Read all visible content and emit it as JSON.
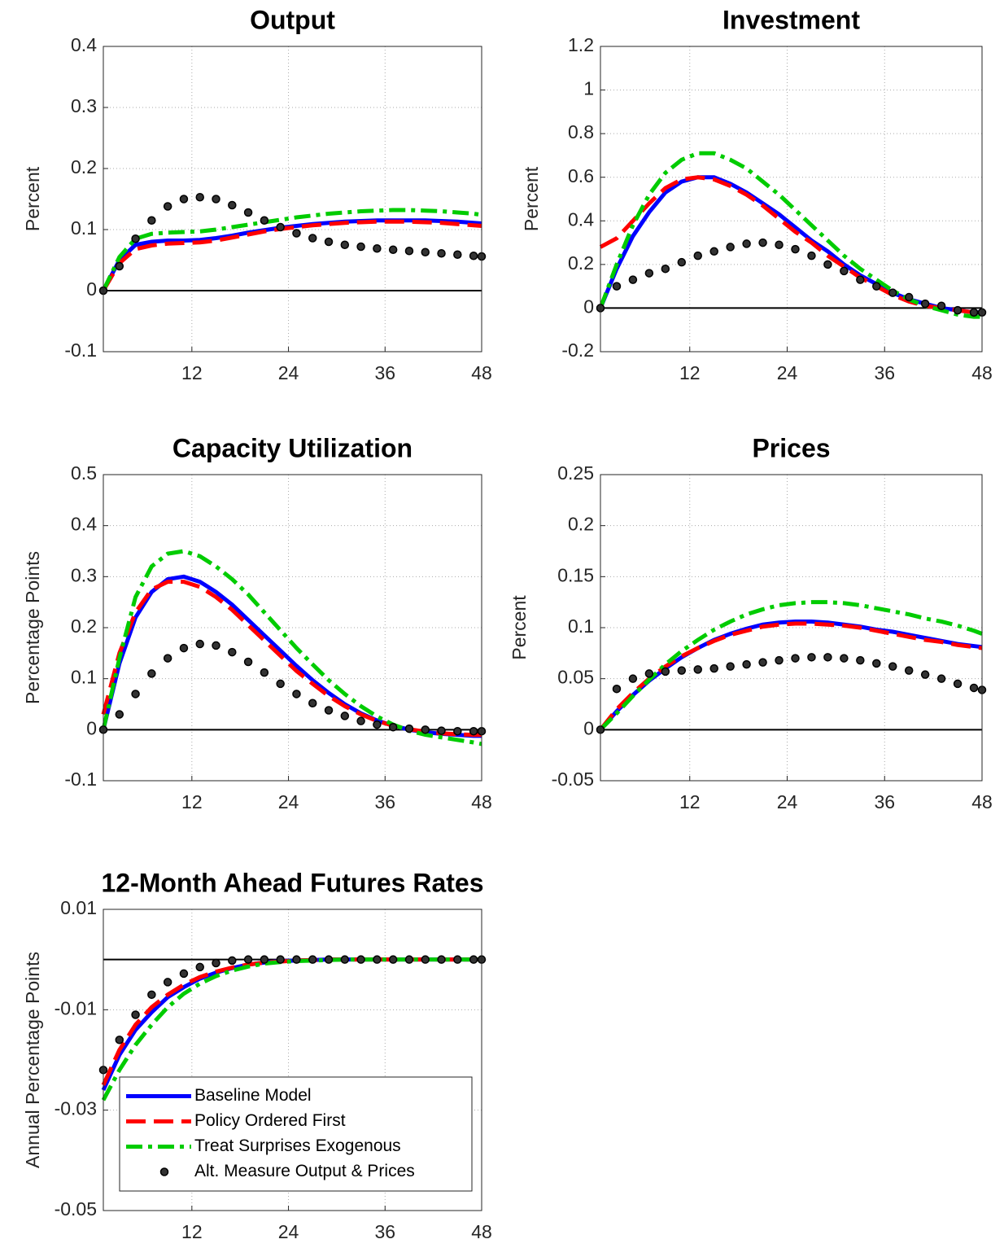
{
  "chart_data": [
    {
      "type": "line",
      "title": "Output",
      "y_label": "Percent",
      "x": [
        1,
        3,
        5,
        7,
        9,
        11,
        13,
        15,
        17,
        19,
        21,
        23,
        25,
        27,
        29,
        31,
        33,
        35,
        37,
        39,
        41,
        43,
        45,
        47,
        48
      ],
      "xlim": [
        1,
        48
      ],
      "xticks": [
        12,
        24,
        36,
        48
      ],
      "ylim": [
        -0.1,
        0.4
      ],
      "yticks": [
        -0.1,
        0,
        0.1,
        0.2,
        0.3,
        0.4
      ],
      "grid": true,
      "hline": 0,
      "series": [
        {
          "color": "#0000ff",
          "style": "solid",
          "values": [
            0,
            0.05,
            0.075,
            0.08,
            0.082,
            0.082,
            0.083,
            0.086,
            0.09,
            0.095,
            0.099,
            0.103,
            0.106,
            0.109,
            0.111,
            0.113,
            0.114,
            0.115,
            0.115,
            0.115,
            0.115,
            0.114,
            0.113,
            0.111,
            0.11
          ]
        },
        {
          "color": "#ff0000",
          "style": "dashed",
          "values": [
            0,
            0.045,
            0.068,
            0.074,
            0.077,
            0.078,
            0.079,
            0.082,
            0.087,
            0.092,
            0.097,
            0.101,
            0.104,
            0.107,
            0.109,
            0.111,
            0.112,
            0.113,
            0.113,
            0.113,
            0.112,
            0.111,
            0.109,
            0.107,
            0.106
          ]
        },
        {
          "color": "#00cc00",
          "style": "dashdot",
          "values": [
            0,
            0.055,
            0.085,
            0.093,
            0.095,
            0.096,
            0.097,
            0.1,
            0.104,
            0.108,
            0.112,
            0.116,
            0.12,
            0.123,
            0.126,
            0.128,
            0.13,
            0.131,
            0.132,
            0.132,
            0.131,
            0.13,
            0.128,
            0.126,
            0.124
          ]
        },
        {
          "color": "#000000",
          "style": "markers",
          "values": [
            0,
            0.04,
            0.085,
            0.115,
            0.138,
            0.15,
            0.153,
            0.15,
            0.14,
            0.128,
            0.115,
            0.104,
            0.094,
            0.086,
            0.08,
            0.075,
            0.072,
            0.069,
            0.067,
            0.065,
            0.063,
            0.061,
            0.059,
            0.057,
            0.056
          ]
        }
      ]
    },
    {
      "type": "line",
      "title": "Investment",
      "y_label": "Percent",
      "x": [
        1,
        3,
        5,
        7,
        9,
        11,
        13,
        15,
        17,
        19,
        21,
        23,
        25,
        27,
        29,
        31,
        33,
        35,
        37,
        39,
        41,
        43,
        45,
        47,
        48
      ],
      "xlim": [
        1,
        48
      ],
      "xticks": [
        12,
        24,
        36,
        48
      ],
      "ylim": [
        -0.2,
        1.2
      ],
      "yticks": [
        -0.2,
        0,
        0.2,
        0.4,
        0.6,
        0.8,
        1,
        1.2
      ],
      "grid": true,
      "hline": 0,
      "series": [
        {
          "color": "#0000ff",
          "style": "solid",
          "values": [
            0,
            0.18,
            0.33,
            0.44,
            0.53,
            0.58,
            0.6,
            0.6,
            0.57,
            0.53,
            0.48,
            0.43,
            0.37,
            0.31,
            0.26,
            0.2,
            0.15,
            0.11,
            0.07,
            0.04,
            0.02,
            0,
            -0.01,
            -0.02,
            -0.02
          ]
        },
        {
          "color": "#ff0000",
          "style": "dashed",
          "values": [
            0.28,
            0.32,
            0.4,
            0.48,
            0.55,
            0.59,
            0.6,
            0.59,
            0.56,
            0.52,
            0.47,
            0.41,
            0.35,
            0.3,
            0.24,
            0.19,
            0.14,
            0.1,
            0.06,
            0.03,
            0.01,
            0,
            -0.01,
            -0.02,
            -0.02
          ]
        },
        {
          "color": "#00cc00",
          "style": "dashdot",
          "values": [
            0,
            0.2,
            0.38,
            0.52,
            0.62,
            0.68,
            0.71,
            0.71,
            0.68,
            0.64,
            0.58,
            0.52,
            0.45,
            0.38,
            0.31,
            0.24,
            0.18,
            0.13,
            0.08,
            0.04,
            0.01,
            -0.01,
            -0.03,
            -0.04,
            -0.04
          ]
        },
        {
          "color": "#000000",
          "style": "markers",
          "values": [
            0,
            0.1,
            0.13,
            0.16,
            0.18,
            0.21,
            0.24,
            0.26,
            0.28,
            0.295,
            0.3,
            0.29,
            0.27,
            0.24,
            0.2,
            0.17,
            0.13,
            0.1,
            0.07,
            0.05,
            0.02,
            0.01,
            -0.01,
            -0.02,
            -0.02
          ]
        }
      ]
    },
    {
      "type": "line",
      "title": "Capacity Utilization",
      "y_label": "Percentage Points",
      "x": [
        1,
        3,
        5,
        7,
        9,
        11,
        13,
        15,
        17,
        19,
        21,
        23,
        25,
        27,
        29,
        31,
        33,
        35,
        37,
        39,
        41,
        43,
        45,
        47,
        48
      ],
      "xlim": [
        1,
        48
      ],
      "xticks": [
        12,
        24,
        36,
        48
      ],
      "ylim": [
        -0.1,
        0.5
      ],
      "yticks": [
        -0.1,
        0,
        0.1,
        0.2,
        0.3,
        0.4,
        0.5
      ],
      "grid": true,
      "hline": 0,
      "series": [
        {
          "color": "#0000ff",
          "style": "solid",
          "values": [
            0,
            0.13,
            0.22,
            0.27,
            0.295,
            0.3,
            0.29,
            0.27,
            0.245,
            0.215,
            0.185,
            0.155,
            0.125,
            0.097,
            0.072,
            0.05,
            0.032,
            0.018,
            0.008,
            0,
            -0.005,
            -0.008,
            -0.01,
            -0.012,
            -0.012
          ]
        },
        {
          "color": "#ff0000",
          "style": "dashed",
          "values": [
            0.03,
            0.15,
            0.23,
            0.275,
            0.29,
            0.29,
            0.28,
            0.26,
            0.235,
            0.205,
            0.175,
            0.145,
            0.115,
            0.09,
            0.066,
            0.046,
            0.03,
            0.017,
            0.008,
            0.001,
            -0.004,
            -0.007,
            -0.009,
            -0.01,
            -0.01
          ]
        },
        {
          "color": "#00cc00",
          "style": "dashdot",
          "values": [
            0,
            0.14,
            0.26,
            0.32,
            0.345,
            0.35,
            0.34,
            0.32,
            0.295,
            0.265,
            0.23,
            0.195,
            0.16,
            0.128,
            0.097,
            0.07,
            0.046,
            0.026,
            0.01,
            -0.002,
            -0.01,
            -0.015,
            -0.02,
            -0.025,
            -0.028
          ]
        },
        {
          "color": "#000000",
          "style": "markers",
          "values": [
            0,
            0.03,
            0.07,
            0.11,
            0.14,
            0.16,
            0.168,
            0.165,
            0.152,
            0.133,
            0.112,
            0.09,
            0.07,
            0.052,
            0.038,
            0.027,
            0.017,
            0.01,
            0.005,
            0.002,
            0,
            -0.002,
            -0.003,
            -0.003,
            -0.003
          ]
        }
      ]
    },
    {
      "type": "line",
      "title": "Prices",
      "y_label": "Percent",
      "x": [
        1,
        3,
        5,
        7,
        9,
        11,
        13,
        15,
        17,
        19,
        21,
        23,
        25,
        27,
        29,
        31,
        33,
        35,
        37,
        39,
        41,
        43,
        45,
        47,
        48
      ],
      "xlim": [
        1,
        48
      ],
      "xticks": [
        12,
        24,
        36,
        48
      ],
      "ylim": [
        -0.05,
        0.25
      ],
      "yticks": [
        -0.05,
        0,
        0.05,
        0.1,
        0.15,
        0.2,
        0.25
      ],
      "grid": true,
      "hline": 0,
      "series": [
        {
          "color": "#0000ff",
          "style": "solid",
          "values": [
            0,
            0.018,
            0.034,
            0.048,
            0.06,
            0.071,
            0.08,
            0.088,
            0.094,
            0.099,
            0.103,
            0.105,
            0.106,
            0.106,
            0.105,
            0.103,
            0.101,
            0.098,
            0.096,
            0.093,
            0.09,
            0.087,
            0.084,
            0.082,
            0.081
          ]
        },
        {
          "color": "#ff0000",
          "style": "dashed",
          "values": [
            0,
            0.02,
            0.036,
            0.05,
            0.062,
            0.072,
            0.08,
            0.087,
            0.093,
            0.097,
            0.101,
            0.103,
            0.104,
            0.104,
            0.103,
            0.102,
            0.1,
            0.097,
            0.094,
            0.091,
            0.088,
            0.086,
            0.083,
            0.081,
            0.08
          ]
        },
        {
          "color": "#00cc00",
          "style": "dashdot",
          "values": [
            0,
            0.016,
            0.033,
            0.049,
            0.064,
            0.077,
            0.088,
            0.098,
            0.106,
            0.113,
            0.118,
            0.122,
            0.124,
            0.125,
            0.125,
            0.124,
            0.122,
            0.119,
            0.116,
            0.113,
            0.109,
            0.106,
            0.102,
            0.097,
            0.094
          ]
        },
        {
          "color": "#000000",
          "style": "markers",
          "values": [
            0,
            0.04,
            0.05,
            0.055,
            0.057,
            0.058,
            0.059,
            0.06,
            0.062,
            0.064,
            0.066,
            0.068,
            0.07,
            0.071,
            0.071,
            0.07,
            0.068,
            0.065,
            0.062,
            0.058,
            0.054,
            0.05,
            0.045,
            0.041,
            0.039
          ]
        }
      ]
    },
    {
      "type": "line",
      "title": "12-Month Ahead Futures Rates",
      "y_label": "Annual Percentage Points",
      "x": [
        1,
        3,
        5,
        7,
        9,
        11,
        13,
        15,
        17,
        19,
        21,
        23,
        25,
        27,
        29,
        31,
        33,
        35,
        37,
        39,
        41,
        43,
        45,
        47,
        48
      ],
      "xlim": [
        1,
        48
      ],
      "xticks": [
        12,
        24,
        36,
        48
      ],
      "ylim": [
        -0.05,
        0.01
      ],
      "yticks": [
        -0.05,
        -0.03,
        -0.01,
        0.01
      ],
      "grid": true,
      "hline": 0,
      "legend": "lower left",
      "series": [
        {
          "name": "Baseline Model",
          "color": "#0000ff",
          "style": "solid",
          "values": [
            -0.026,
            -0.019,
            -0.014,
            -0.0105,
            -0.0075,
            -0.0055,
            -0.0038,
            -0.0026,
            -0.0017,
            -0.001,
            -0.0006,
            -0.0003,
            -0.0002,
            -0.0001,
            0,
            0,
            0,
            0,
            0,
            0,
            0,
            0,
            0,
            0,
            0
          ]
        },
        {
          "name": "Policy Ordered First",
          "color": "#ff0000",
          "style": "dashed",
          "values": [
            -0.025,
            -0.018,
            -0.013,
            -0.0095,
            -0.007,
            -0.005,
            -0.0035,
            -0.0024,
            -0.0016,
            -0.001,
            -0.0006,
            -0.0004,
            -0.0002,
            -0.0001,
            0,
            0,
            0,
            0,
            0,
            0,
            0,
            0,
            0,
            0,
            0
          ]
        },
        {
          "name": "Treat Surprises Exogenous",
          "color": "#00cc00",
          "style": "dashdot",
          "values": [
            -0.028,
            -0.022,
            -0.017,
            -0.013,
            -0.0095,
            -0.0068,
            -0.0048,
            -0.0033,
            -0.0022,
            -0.0014,
            -0.0008,
            -0.0005,
            -0.0003,
            -0.0002,
            -0.0001,
            0,
            0,
            0,
            0,
            0,
            0,
            0,
            0,
            0,
            0
          ]
        },
        {
          "name": "Alt. Measure Output & Prices",
          "color": "#000000",
          "style": "markers",
          "values": [
            -0.022,
            -0.016,
            -0.011,
            -0.007,
            -0.0045,
            -0.0028,
            -0.0015,
            -0.0007,
            -0.0002,
            0,
            0,
            0,
            0,
            0,
            0,
            0,
            0,
            0,
            0,
            0,
            0,
            0,
            0,
            0,
            0
          ]
        }
      ]
    }
  ]
}
